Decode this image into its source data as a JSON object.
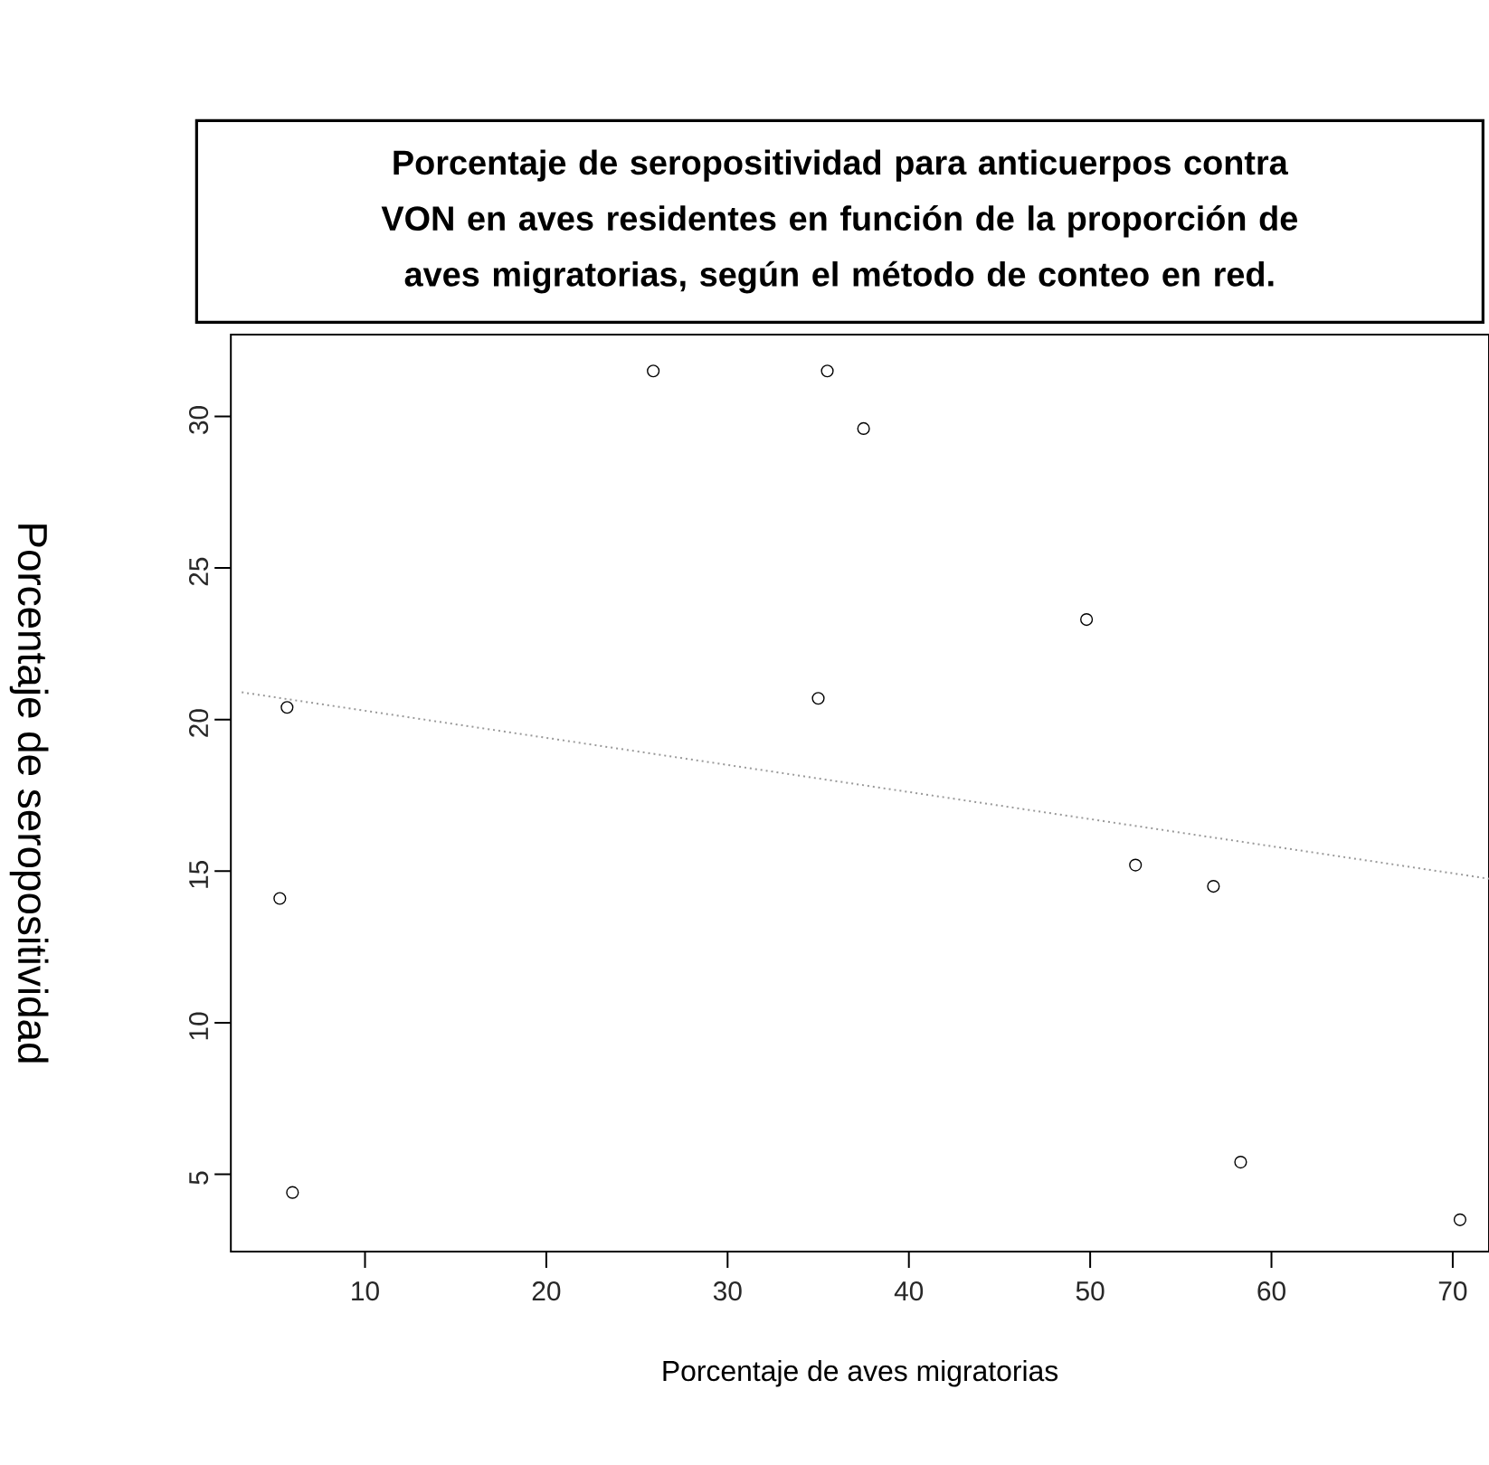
{
  "chart_data": {
    "type": "scatter",
    "title": "Porcentaje de seropositividad para anticuerpos contra VON en aves residentes en función de la proporción de aves migratorias, según el método de conteo en red.",
    "xlabel": "Porcentaje de aves migratorias",
    "ylabel": "Porcentaje de seropositividad",
    "xlim": [
      2.6,
      72
    ],
    "ylim": [
      2.45,
      32.7
    ],
    "xticks": [
      10,
      20,
      30,
      40,
      50,
      60,
      70
    ],
    "yticks": [
      5,
      10,
      15,
      20,
      25,
      30
    ],
    "marker": "circle",
    "series": [
      {
        "color": "#000000",
        "x": [
          5.7,
          5.3,
          6.0,
          25.9,
          35.5,
          37.5,
          49.8,
          35.0,
          52.5,
          56.8,
          58.3,
          70.4
        ],
        "values": [
          20.4,
          14.1,
          4.4,
          31.5,
          31.5,
          29.6,
          23.3,
          20.7,
          15.2,
          14.5,
          5.4,
          3.5
        ]
      },
      {
        "type": "line",
        "line_style": "dotted",
        "marker": "none",
        "color": "#999999",
        "x": [
          3.2,
          72
        ],
        "values": [
          20.9,
          14.75
        ]
      }
    ]
  }
}
